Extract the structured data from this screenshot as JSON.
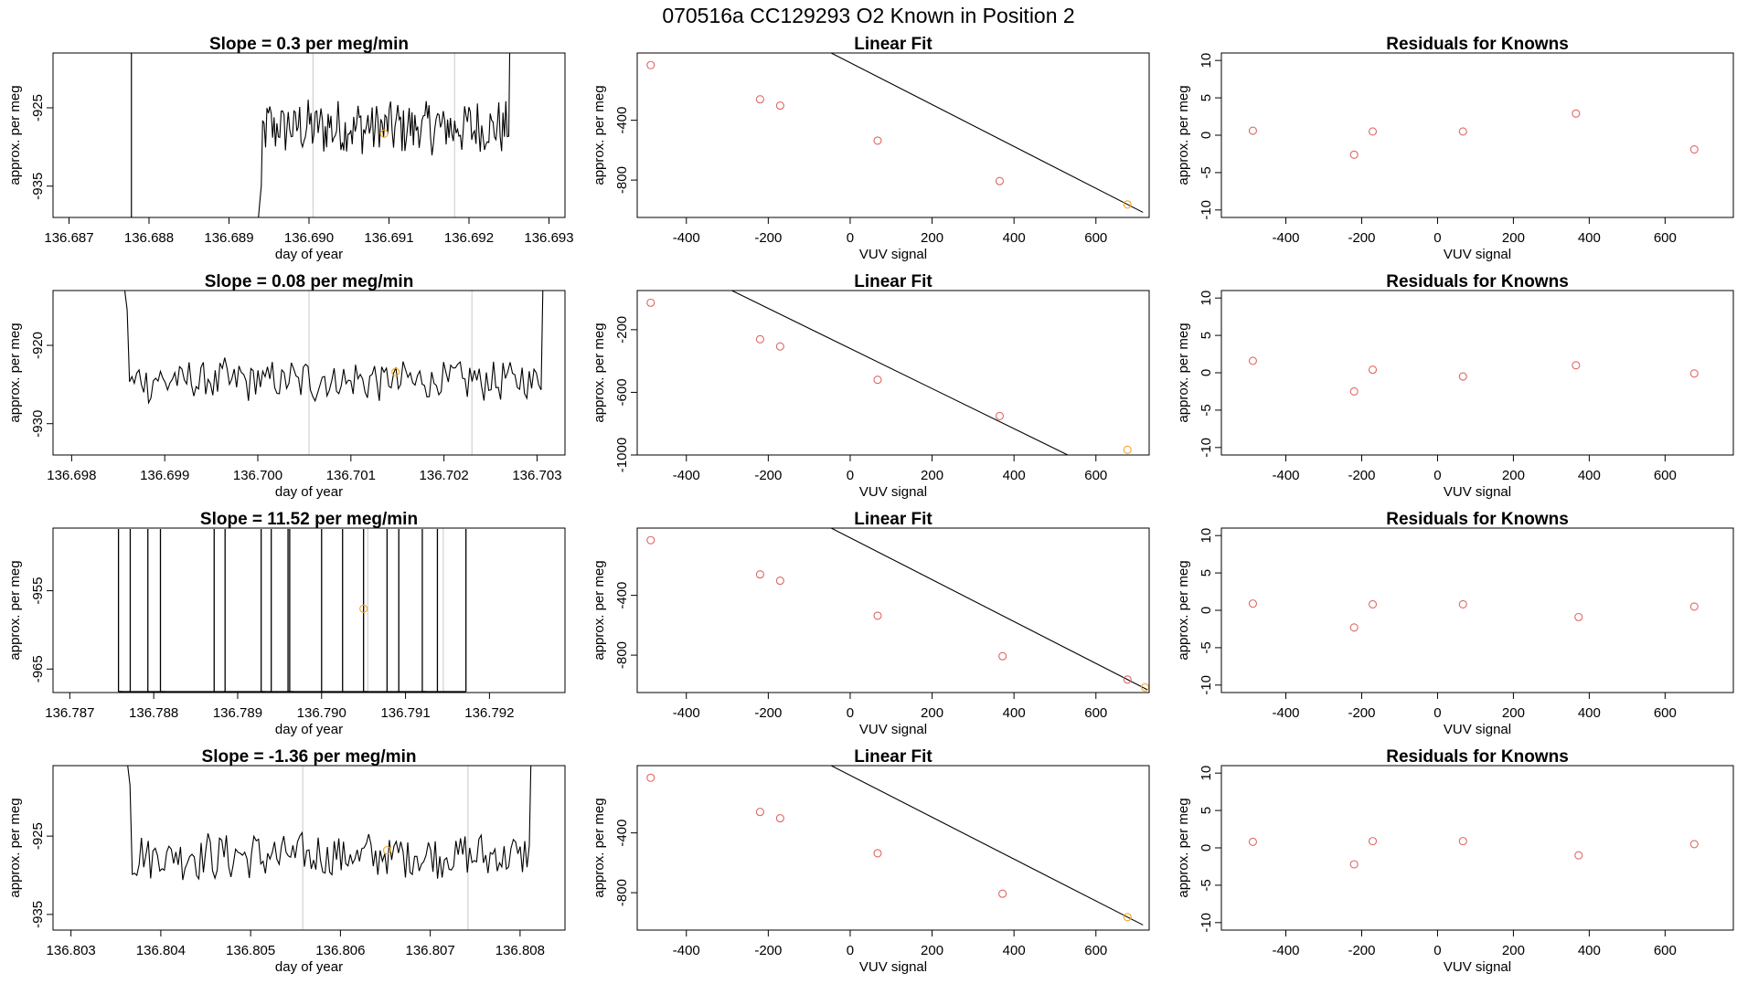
{
  "figure": {
    "title": "070516a      CC129293   O2 Known in Position  2"
  },
  "colors": {
    "known_point": "#e06666",
    "unknown_point": "#f5a623",
    "line": "#000000",
    "marker_line": "#c8c8c8"
  },
  "chart_data": [
    {
      "type": "line",
      "panel": "time-series-1",
      "title": "Slope =  0.3  per meg/min",
      "xlabel": "day of year",
      "ylabel": "approx. per meg",
      "xlim": [
        136.6868,
        136.6932
      ],
      "ylim": [
        -939,
        -918
      ],
      "xticks": [
        136.687,
        136.688,
        136.689,
        136.69,
        136.691,
        136.692,
        136.693
      ],
      "xtick_labels": [
        "136.687",
        "136.688",
        "136.689",
        "136.690",
        "136.691",
        "136.692",
        "136.693"
      ],
      "yticks": [
        -925,
        -935
      ],
      "ytick_labels": [
        "-925",
        "-935"
      ],
      "vlines": [
        136.69005,
        136.69182
      ],
      "series_start": 136.68935,
      "series_end": 136.69255,
      "series_mean": -927.5,
      "series_amp": 3.2,
      "pre_line_x": 136.68778,
      "unknown_point": {
        "x": 136.69094,
        "y": -928.3
      }
    },
    {
      "type": "line",
      "panel": "time-series-2",
      "title": "Slope =  0.08  per meg/min",
      "xlabel": "day of year",
      "ylabel": "approx. per meg",
      "xlim": [
        136.6978,
        136.7033
      ],
      "ylim": [
        -934,
        -913
      ],
      "xticks": [
        136.698,
        136.699,
        136.7,
        136.701,
        136.702,
        136.703
      ],
      "xtick_labels": [
        "136.698",
        "136.699",
        "136.700",
        "136.701",
        "136.702",
        "136.703"
      ],
      "yticks": [
        -920,
        -930
      ],
      "ytick_labels": [
        "-920",
        "-930"
      ],
      "vlines": [
        136.70055,
        136.7023
      ],
      "series_start": 136.69852,
      "series_end": 136.70312,
      "series_mean": -924.5,
      "series_amp": 2.4,
      "unknown_point": {
        "x": 136.70148,
        "y": -923.4
      }
    },
    {
      "type": "line",
      "panel": "time-series-3",
      "title": "Slope =  11.52  per meg/min",
      "xlabel": "day of year",
      "ylabel": "approx. per meg",
      "xlim": [
        136.7868,
        136.7929
      ],
      "ylim": [
        -968,
        -947
      ],
      "xticks": [
        136.787,
        136.788,
        136.789,
        136.79,
        136.791,
        136.792
      ],
      "xtick_labels": [
        "136.787",
        "136.788",
        "136.789",
        "136.790",
        "136.791",
        "136.792"
      ],
      "yticks": [
        -955,
        -965
      ],
      "ytick_labels": [
        "-955",
        "-965"
      ],
      "vlines": [
        136.79055,
        136.79145
      ],
      "spikes": [
        136.78758,
        136.78772,
        136.78793,
        136.78808,
        136.78872,
        136.78885,
        136.78928,
        136.7894,
        136.7896,
        136.78962,
        136.79,
        136.79025,
        136.7905,
        136.79078,
        136.79092,
        136.7912,
        136.79138,
        136.79172
      ],
      "unknown_point": {
        "x": 136.7905,
        "y": -957.3
      }
    },
    {
      "type": "line",
      "panel": "time-series-4",
      "title": "Slope =  -1.36  per meg/min",
      "xlabel": "day of year",
      "ylabel": "approx. per meg",
      "xlim": [
        136.8028,
        136.8085
      ],
      "ylim": [
        -937,
        -916
      ],
      "xticks": [
        136.803,
        136.804,
        136.805,
        136.806,
        136.807,
        136.808
      ],
      "xtick_labels": [
        "136.803",
        "136.804",
        "136.805",
        "136.806",
        "136.807",
        "136.808"
      ],
      "yticks": [
        -925,
        -935
      ],
      "ytick_labels": [
        "-925",
        "-935"
      ],
      "vlines": [
        136.80558,
        136.80742
      ],
      "series_start": 136.80358,
      "series_end": 136.80818,
      "series_mean": -927.5,
      "series_amp": 2.6,
      "unknown_point": {
        "x": 136.80652,
        "y": -926.8
      }
    },
    {
      "type": "scatter",
      "panel": "linear-fit-1",
      "title": "Linear Fit",
      "xlabel": "VUV signal",
      "ylabel": "approx. per meg",
      "xlim": [
        -520,
        730
      ],
      "ylim": [
        -1050,
        50
      ],
      "xticks": [
        -400,
        -200,
        0,
        200,
        400,
        600
      ],
      "xtick_labels": [
        "-400",
        "-200",
        "0",
        "200",
        "400",
        "600"
      ],
      "yticks": [
        -400,
        -800
      ],
      "ytick_labels": [
        "-400",
        "-800"
      ],
      "fit": {
        "slope": -1.4,
        "intercept": -15
      },
      "line_x": [
        -515,
        715
      ],
      "known_points": {
        "x": [
          -487,
          -220,
          -171,
          67,
          365
        ],
        "y": [
          -31,
          -260,
          -302,
          -536,
          -807
        ]
      },
      "unknown_points": {
        "x": [
          677
        ],
        "y": [
          -963
        ]
      }
    },
    {
      "type": "scatter",
      "panel": "linear-fit-2",
      "title": "Linear Fit",
      "xlabel": "VUV signal",
      "ylabel": "approx. per meg",
      "xlim": [
        -520,
        730
      ],
      "ylim": [
        -1000,
        50
      ],
      "xticks": [
        -400,
        -200,
        0,
        200,
        400,
        600
      ],
      "xtick_labels": [
        "-400",
        "-200",
        "0",
        "200",
        "400",
        "600"
      ],
      "yticks": [
        -200,
        -600,
        -1000
      ],
      "ytick_labels": [
        "-200",
        "-600",
        "-1000"
      ],
      "fit": {
        "slope": -1.28,
        "intercept": -320
      },
      "line_x": [
        -515,
        715
      ],
      "known_points": {
        "x": [
          -487,
          -220,
          -171,
          67,
          365
        ],
        "y": [
          -28,
          -261,
          -307,
          -520,
          -751
        ]
      },
      "unknown_points": {
        "x": [
          677
        ],
        "y": [
          -967
        ]
      }
    },
    {
      "type": "scatter",
      "panel": "linear-fit-3",
      "title": "Linear Fit",
      "xlabel": "VUV signal",
      "ylabel": "approx. per meg",
      "xlim": [
        -520,
        730
      ],
      "ylim": [
        -1050,
        50
      ],
      "xticks": [
        -400,
        -200,
        0,
        200,
        400,
        600
      ],
      "xtick_labels": [
        "-400",
        "-200",
        "0",
        "200",
        "400",
        "600"
      ],
      "yticks": [
        -400,
        -800
      ],
      "ytick_labels": [
        "-400",
        "-800"
      ],
      "fit": {
        "slope": -1.4,
        "intercept": -15
      },
      "line_x": [
        -515,
        725
      ],
      "known_points": {
        "x": [
          -487,
          -220,
          -171,
          67,
          372,
          677
        ],
        "y": [
          -31,
          -260,
          -302,
          -536,
          -807,
          -963
        ]
      },
      "unknown_points": {
        "x": [
          720
        ],
        "y": [
          -1015
        ]
      }
    },
    {
      "type": "scatter",
      "panel": "linear-fit-4",
      "title": "Linear Fit",
      "xlabel": "VUV signal",
      "ylabel": "approx. per meg",
      "xlim": [
        -520,
        730
      ],
      "ylim": [
        -1050,
        50
      ],
      "xticks": [
        -400,
        -200,
        0,
        200,
        400,
        600
      ],
      "xtick_labels": [
        "-400",
        "-200",
        "0",
        "200",
        "400",
        "600"
      ],
      "yticks": [
        -400,
        -800
      ],
      "ytick_labels": [
        "-400",
        "-800"
      ],
      "fit": {
        "slope": -1.4,
        "intercept": -15
      },
      "line_x": [
        -515,
        715
      ],
      "known_points": {
        "x": [
          -487,
          -220,
          -171,
          67,
          372
        ],
        "y": [
          -31,
          -260,
          -302,
          -536,
          -807
        ]
      },
      "unknown_points": {
        "x": [
          677
        ],
        "y": [
          -963
        ]
      }
    },
    {
      "type": "scatter",
      "panel": "residuals-1",
      "title": "Residuals for Knowns",
      "xlabel": "VUV signal",
      "ylabel": "approx. per meg",
      "xlim": [
        -570,
        780
      ],
      "ylim": [
        -11,
        11
      ],
      "xticks": [
        -400,
        -200,
        0,
        200,
        400,
        600
      ],
      "xtick_labels": [
        "-400",
        "-200",
        "0",
        "200",
        "400",
        "600"
      ],
      "yticks": [
        10,
        5,
        0,
        -5,
        -10
      ],
      "ytick_labels": [
        "10",
        "5",
        "0",
        "-5",
        "-10"
      ],
      "known_points": {
        "x": [
          -487,
          -220,
          -171,
          67,
          365,
          677
        ],
        "y": [
          0.6,
          -2.6,
          0.5,
          0.5,
          2.9,
          -1.9
        ]
      }
    },
    {
      "type": "scatter",
      "panel": "residuals-2",
      "title": "Residuals for Knowns",
      "xlabel": "VUV signal",
      "ylabel": "approx. per meg",
      "xlim": [
        -570,
        780
      ],
      "ylim": [
        -11,
        11
      ],
      "xticks": [
        -400,
        -200,
        0,
        200,
        400,
        600
      ],
      "xtick_labels": [
        "-400",
        "-200",
        "0",
        "200",
        "400",
        "600"
      ],
      "yticks": [
        10,
        5,
        0,
        -5,
        -10
      ],
      "ytick_labels": [
        "10",
        "5",
        "0",
        "-5",
        "-10"
      ],
      "known_points": {
        "x": [
          -487,
          -220,
          -171,
          67,
          365,
          677
        ],
        "y": [
          1.6,
          -2.5,
          0.4,
          -0.5,
          1.0,
          -0.1
        ]
      }
    },
    {
      "type": "scatter",
      "panel": "residuals-3",
      "title": "Residuals for Knowns",
      "xlabel": "VUV signal",
      "ylabel": "approx. per meg",
      "xlim": [
        -570,
        780
      ],
      "ylim": [
        -11,
        11
      ],
      "xticks": [
        -400,
        -200,
        0,
        200,
        400,
        600
      ],
      "xtick_labels": [
        "-400",
        "-200",
        "0",
        "200",
        "400",
        "600"
      ],
      "yticks": [
        10,
        5,
        0,
        -5,
        -10
      ],
      "ytick_labels": [
        "10",
        "5",
        "0",
        "-5",
        "-10"
      ],
      "known_points": {
        "x": [
          -487,
          -220,
          -171,
          67,
          372,
          677
        ],
        "y": [
          0.9,
          -2.3,
          0.8,
          0.8,
          -0.9,
          0.5
        ]
      }
    },
    {
      "type": "scatter",
      "panel": "residuals-4",
      "title": "Residuals for Knowns",
      "xlabel": "VUV signal",
      "ylabel": "approx. per meg",
      "xlim": [
        -570,
        780
      ],
      "ylim": [
        -11,
        11
      ],
      "xticks": [
        -400,
        -200,
        0,
        200,
        400,
        600
      ],
      "xtick_labels": [
        "-400",
        "-200",
        "0",
        "200",
        "400",
        "600"
      ],
      "yticks": [
        10,
        5,
        0,
        -5,
        -10
      ],
      "ytick_labels": [
        "10",
        "5",
        "0",
        "-5",
        "-10"
      ],
      "known_points": {
        "x": [
          -487,
          -220,
          -171,
          67,
          372,
          677
        ],
        "y": [
          0.8,
          -2.2,
          0.9,
          0.9,
          -1.0,
          0.5
        ]
      }
    }
  ]
}
